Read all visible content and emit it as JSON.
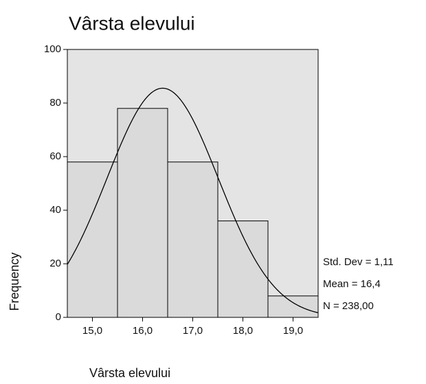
{
  "chart_data": {
    "type": "histogram",
    "title": "Vârsta elevului",
    "xlabel": "Vârsta elevului",
    "ylabel": "Frequency",
    "bins": [
      14.5,
      15.5,
      16.5,
      17.5,
      18.5,
      19.5
    ],
    "values": [
      58,
      78,
      58,
      36,
      8
    ],
    "color": "#dadada",
    "xlim": [
      14.5,
      19.5
    ],
    "xticks": [
      {
        "value": 15,
        "label": "15,0"
      },
      {
        "value": 16,
        "label": "16,0"
      },
      {
        "value": 17,
        "label": "17,0"
      },
      {
        "value": 18,
        "label": "18,0"
      },
      {
        "value": 19,
        "label": "19,0"
      }
    ],
    "ylim": [
      0,
      100
    ],
    "yticks": [
      0,
      20,
      40,
      60,
      80,
      100
    ],
    "stats": {
      "std_dev": {
        "value": 1.11,
        "label": "Std. Dev = 1,11"
      },
      "mean": {
        "value": 16.4,
        "label": "Mean = 16,4"
      },
      "n": {
        "value": 238,
        "label": "N = 238,00"
      }
    }
  }
}
